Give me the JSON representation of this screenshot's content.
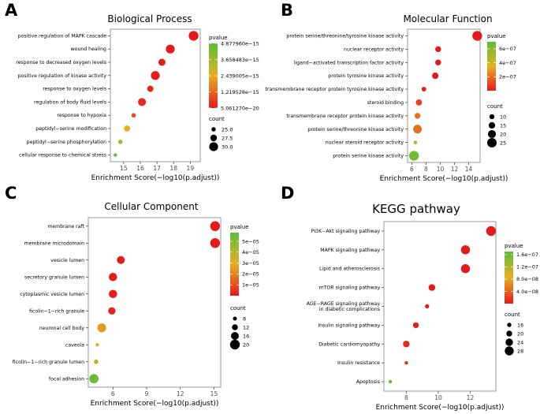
{
  "chart_data": [
    {
      "panel_label": "A",
      "type": "scatter",
      "title": "Biological Process",
      "xlabel": "Enrichment Score(−log10(p.adjust))",
      "xlim": [
        14.2,
        19.6
      ],
      "xticks": [
        "15",
        "16",
        "17",
        "18",
        "19"
      ],
      "xtick_values": [
        15,
        16,
        17,
        18,
        19
      ],
      "categories": [
        "positive regulation of MAPK cascade",
        "wound healing",
        "response to decreased oxygen levels",
        "positive regulation of kinase activity",
        "response to oxygen levels",
        "regulation of body fluid levels",
        "response to hypoxia",
        "peptidyl−serine modification",
        "peptidyl−serine phosphorylation",
        "cellular response to chemical stress"
      ],
      "values": [
        19.2,
        17.8,
        17.3,
        16.9,
        16.6,
        16.1,
        15.6,
        15.2,
        14.8,
        14.5
      ],
      "pvalue": [
        5e-20,
        1e-18,
        3e-17,
        5e-17,
        1e-16,
        3e-16,
        8e-16,
        2.5e-15,
        3.5e-15,
        4.5e-15
      ],
      "count": [
        31,
        30,
        28,
        30,
        27,
        29,
        25,
        27,
        25,
        24
      ],
      "color_legend": {
        "title": "pvalue",
        "labels": [
          "4.877960e−15",
          "3.658483e−15",
          "2.439005e−15",
          "1.219528e−15",
          "5.061270e−20"
        ],
        "values": [
          4.87796e-15,
          3.658483e-15,
          2.439005e-15,
          1.219528e-15,
          5.06127e-20
        ],
        "min": 5.06127e-20,
        "max": 4.87796e-15
      },
      "size_legend": {
        "title": "count",
        "labels": [
          "25.0",
          "27.5",
          "30.0"
        ],
        "values": [
          25,
          27.5,
          30
        ],
        "min": 24,
        "max": 31
      }
    },
    {
      "panel_label": "B",
      "type": "scatter",
      "title": "Molecular Function",
      "xlabel": "Enrichment Score(−log10(p.adjust))",
      "xlim": [
        5.4,
        15.6
      ],
      "xticks": [
        "6",
        "8",
        "10",
        "12",
        "14"
      ],
      "xtick_values": [
        6,
        8,
        10,
        12,
        14
      ],
      "categories": [
        "protein serine/threonine/tyrosine kinase activity",
        "nuclear receptor activity",
        "ligand−activated transcription factor activity",
        "protein tyrosine kinase activity",
        "transmembrane receptor protein tyrosine kinase activity",
        "steroid binding",
        "transmembrane receptor protein kinase activity",
        "protein serine/threonine kinase activity",
        "nuclear steroid receptor activity",
        "protein serine kinase activity"
      ],
      "values": [
        15.2,
        9.7,
        9.7,
        9.3,
        7.7,
        7.0,
        6.8,
        6.8,
        6.5,
        6.3
      ],
      "pvalue": [
        1e-15,
        1e-10,
        1e-10,
        1e-10,
        1e-08,
        1e-07,
        2e-07,
        2e-07,
        5e-07,
        6.5e-07
      ],
      "count": [
        26,
        13,
        13,
        15,
        9,
        14,
        13,
        22,
        5,
        26
      ],
      "color_legend": {
        "title": "pvalue",
        "labels": [
          "6e−07",
          "4e−07",
          "2e−07"
        ],
        "values": [
          6e-07,
          4e-07,
          2e-07
        ],
        "min": 0,
        "max": 7e-07
      },
      "size_legend": {
        "title": "count",
        "labels": [
          "10",
          "15",
          "20",
          "25"
        ],
        "values": [
          10,
          15,
          20,
          25
        ],
        "min": 5,
        "max": 26
      }
    },
    {
      "panel_label": "C",
      "type": "scatter",
      "title": "Cellular Component",
      "xlabel": "Enrichment Score(−log10(p.adjust))",
      "xlim": [
        3.8,
        15.6
      ],
      "xticks": [
        "6",
        "9",
        "12",
        "15"
      ],
      "xtick_values": [
        6,
        9,
        12,
        15
      ],
      "categories": [
        "membrane raft",
        "membrane microdomain",
        "vesicle lumen",
        "secretory granule lumen",
        "cytoplasmic vesicle lumen",
        "ficolin−1−rich granule",
        "neuronal cell body",
        "caveola",
        "ficolin−1−rich granule lumen",
        "focal adhesion"
      ],
      "values": [
        15.1,
        15.1,
        6.7,
        6.0,
        6.0,
        5.9,
        5.0,
        4.6,
        4.5,
        4.3
      ],
      "pvalue": [
        1e-15,
        1e-15,
        1e-07,
        1e-06,
        1e-06,
        2e-06,
        2.5e-05,
        3e-05,
        4e-05,
        5.5e-05
      ],
      "count": [
        20,
        20,
        16,
        17,
        17,
        15,
        18,
        7,
        9,
        19
      ],
      "color_legend": {
        "title": "pvalue",
        "labels": [
          "5e−05",
          "4e−05",
          "3e−05",
          "2e−05",
          "1e−05"
        ],
        "values": [
          5e-05,
          4e-05,
          3e-05,
          2e-05,
          1e-05
        ],
        "min": 0,
        "max": 5.8e-05
      },
      "size_legend": {
        "title": "count",
        "labels": [
          "8",
          "12",
          "16",
          "20"
        ],
        "values": [
          8,
          12,
          16,
          20
        ],
        "min": 7,
        "max": 20
      }
    },
    {
      "panel_label": "D",
      "type": "scatter",
      "title": "KEGG pathway",
      "xlabel": "Enrichment Score(−log10(p.adjust))",
      "xlim": [
        6.6,
        13.6
      ],
      "xticks": [
        "8",
        "10",
        "12"
      ],
      "xtick_values": [
        8,
        10,
        12
      ],
      "categories": [
        "PI3K−Akt signaling pathway",
        "MAPK signaling pathway",
        "Lipid and atherosclerosis",
        "mTOR signaling pathway",
        "AGE−RAGE signaling pathway\nin diabetic complications",
        "Insulin signaling pathway",
        "Diabetic cardiomyopathy",
        "Insulin resistance",
        "Apoptosis"
      ],
      "values": [
        13.3,
        11.7,
        11.7,
        9.6,
        9.3,
        8.6,
        8.0,
        8.0,
        7.0
      ],
      "pvalue": [
        5e-14,
        2e-12,
        2e-12,
        2.5e-10,
        5e-10,
        2.5e-09,
        1e-08,
        1e-08,
        1.6e-07
      ],
      "count": [
        30,
        28,
        28,
        22,
        16,
        20,
        22,
        14,
        14
      ],
      "color_legend": {
        "title": "pvalue",
        "labels": [
          "1.6e−07",
          "1.2e−07",
          "8.0e−08",
          "4.0e−08"
        ],
        "values": [
          1.6e-07,
          1.2e-07,
          8e-08,
          4e-08
        ],
        "min": 0,
        "max": 1.7e-07
      },
      "size_legend": {
        "title": "count",
        "labels": [
          "16",
          "20",
          "24",
          "28"
        ],
        "values": [
          16,
          20,
          24,
          28
        ],
        "min": 14,
        "max": 30
      }
    }
  ],
  "colors": {
    "low_p": "#e41a1c",
    "mid_p": "#e6b020",
    "high_p": "#5bbf3a",
    "panel_border": "#7f7f7f"
  }
}
